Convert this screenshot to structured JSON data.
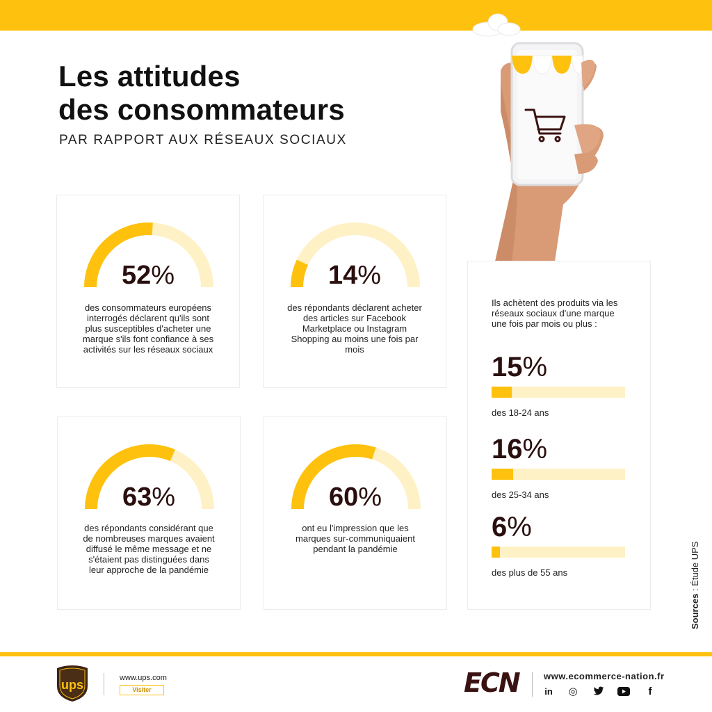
{
  "title": {
    "line1": "Les attitudes",
    "line2": "des consommateurs"
  },
  "subtitle": "PAR RAPPORT AUX RÉSEAUX SOCIAUX",
  "colors": {
    "accent": "#fec10e",
    "accent_light": "#fff1c6",
    "text_dark": "#2a0f0f"
  },
  "stats": [
    {
      "value": 52,
      "pct": "52",
      "sign": "%",
      "text": "des consommateurs européens interrogés déclarent qu'ils sont plus susceptibles d'acheter une marque s'ils font confiance à ses activités sur les réseaux sociaux"
    },
    {
      "value": 14,
      "pct": "14",
      "sign": "%",
      "text": "des répondants déclarent acheter des articles sur Facebook Marketplace ou Instagram Shopping au moins une fois par mois"
    },
    {
      "value": 63,
      "pct": "63",
      "sign": "%",
      "text": "des répondants considérant que de nombreuses marques avaient diffusé le même message et ne s'étaient pas distinguées dans leur approche de la pandémie"
    },
    {
      "value": 60,
      "pct": "60",
      "sign": "%",
      "text": "ont eu l'impression que les marques sur-communiquaient pendant la pandémie"
    }
  ],
  "side": {
    "intro": "Ils achètent des produits via les réseaux sociaux d'une marque une fois par mois ou plus :",
    "rows": [
      {
        "value": 15,
        "pct": "15",
        "sign": "%",
        "label": "des 18-24 ans"
      },
      {
        "value": 16,
        "pct": "16",
        "sign": "%",
        "label": "des 25-34 ans"
      },
      {
        "value": 6,
        "pct": "6",
        "sign": "%",
        "label": "des plus de 55 ans"
      }
    ]
  },
  "sources": {
    "label": "Sources",
    "sep": " : ",
    "value": "Étude UPS"
  },
  "footer": {
    "ups_logo_text": "ups",
    "ups_url": "www.ups.com",
    "ups_visit": "Visiter",
    "ecn_logo": "ECN",
    "ecn_url": "www.ecommerce-nation.fr",
    "socials": [
      {
        "icon": "linkedin-icon",
        "glyph": "in"
      },
      {
        "icon": "instagram-icon",
        "glyph": "◎"
      },
      {
        "icon": "twitter-icon",
        "glyph": "🐦"
      },
      {
        "icon": "youtube-icon",
        "glyph": "▶"
      },
      {
        "icon": "facebook-icon",
        "glyph": "f"
      }
    ]
  }
}
